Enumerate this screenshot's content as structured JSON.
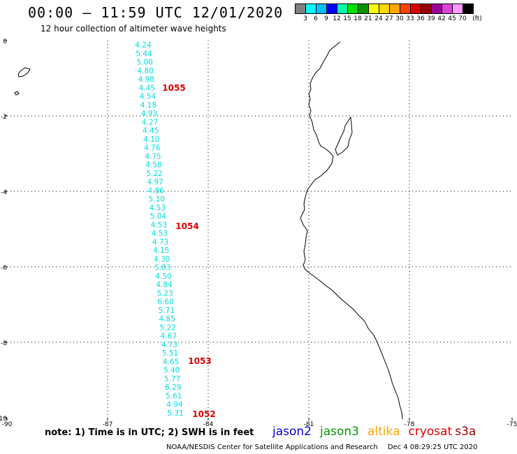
{
  "header": {
    "title": "00:00 – 11:59 UTC 12/01/2020",
    "subtitle": "12 hour collection of altimeter wave heights"
  },
  "color_scale": {
    "colors": [
      "#808080",
      "#00ffff",
      "#00bfff",
      "#0000ff",
      "#00ffaa",
      "#00dd00",
      "#009900",
      "#ffff00",
      "#ffd700",
      "#ffa500",
      "#ff4500",
      "#dd0000",
      "#990000",
      "#990099",
      "#dd44dd",
      "#ff99ff",
      "#000000"
    ],
    "labels": [
      "3",
      "6",
      "9",
      "12",
      "15",
      "18",
      "21",
      "24",
      "27",
      "30",
      "33",
      "36",
      "39",
      "42",
      "45",
      "70"
    ],
    "unit": "(ft)"
  },
  "map": {
    "lat_ticks": [
      "0",
      "-2",
      "-4",
      "-6",
      "-8",
      "-10"
    ],
    "lon_ticks": [
      "-90",
      "-87",
      "-84",
      "-81",
      "-78",
      "-75"
    ],
    "track_color": "#00dede",
    "track_values": [
      "4.24",
      "5.44",
      "5.00",
      "4.80",
      "4.98",
      "4.45",
      "4.54",
      "4.18",
      "4.93",
      "4.27",
      "4.45",
      "4.10",
      "4.76",
      "4.75",
      "4.58",
      "5.22",
      "4.97",
      "4.86",
      "5.10",
      "4.53",
      "5.04",
      "4.53",
      "4.53",
      "4.73",
      "4.15",
      "4.30",
      "5.03",
      "4.50",
      "4.84",
      "5.23",
      "6.60",
      "5.71",
      "4.85",
      "5.22",
      "4.67",
      "4.73",
      "5.51",
      "4.65",
      "5.40",
      "5.77",
      "6.29",
      "5.61",
      "4.94",
      "5.31"
    ],
    "time_labels": [
      "1055",
      "1054",
      "1053",
      "1052"
    ],
    "time_label_color": "#dd0000"
  },
  "footer": {
    "note": "note:  1) Time is in UTC;  2) SWH is in feet",
    "satellites": [
      {
        "name": "jason2",
        "color": "#0000dd"
      },
      {
        "name": "jason3",
        "color": "#009900"
      },
      {
        "name": "altika",
        "color": "#ffa500"
      },
      {
        "name": "cryosat",
        "color": "#dd0000"
      },
      {
        "name": "s3a",
        "color": "#990000"
      }
    ],
    "credit": "NOAA/NESDIS Center for Satellite Applications and Research",
    "timestamp": "Dec  4 08:29:25 UTC 2020"
  }
}
